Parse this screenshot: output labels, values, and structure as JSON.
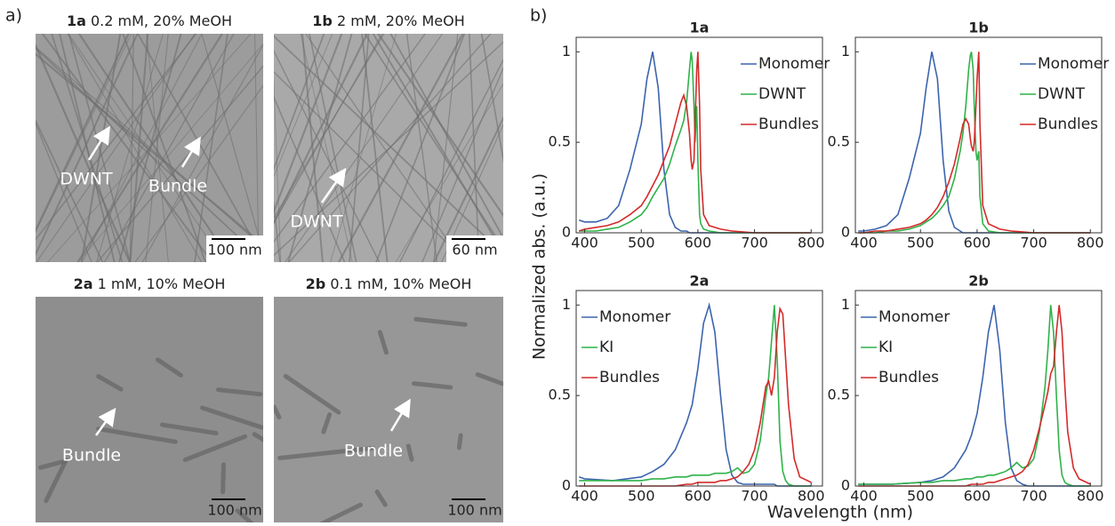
{
  "figure": {
    "label_a": "a)",
    "label_b": "b)",
    "ylabel": "Normalized abs. (a.u.)",
    "xlabel": "Wavelength (nm)"
  },
  "micrographs": [
    {
      "id": "1a",
      "caption": "0.2 mM, 20% MeOH",
      "annotations": [
        "DWNT",
        "Bundle"
      ],
      "scale_bar": "100 nm"
    },
    {
      "id": "1b",
      "caption": "2 mM, 20% MeOH",
      "annotations": [
        "DWNT"
      ],
      "scale_bar": "60 nm"
    },
    {
      "id": "2a",
      "caption": "1 mM, 10% MeOH",
      "annotations": [
        "Bundle"
      ],
      "scale_bar": "100 nm"
    },
    {
      "id": "2b",
      "caption": "0.1 mM, 10% MeOH",
      "annotations": [
        "Bundle"
      ],
      "scale_bar": "100 nm"
    }
  ],
  "chart_data": [
    {
      "type": "line",
      "title": "1a",
      "legend": "upper right",
      "xlim": [
        385,
        820
      ],
      "ylim": [
        0,
        1.08
      ],
      "xticks": [
        400,
        500,
        600,
        700,
        800
      ],
      "yticks": [
        0,
        0.5,
        1
      ],
      "x": [
        390,
        400,
        420,
        440,
        460,
        480,
        500,
        510,
        520,
        530,
        540,
        550,
        560,
        570,
        575,
        580,
        585,
        588,
        590,
        593,
        595,
        598,
        600,
        603,
        605,
        610,
        620,
        640,
        660,
        700,
        750,
        800
      ],
      "series": [
        {
          "name": "Monomer",
          "color": "#3c64ad",
          "values": [
            0.07,
            0.06,
            0.06,
            0.08,
            0.15,
            0.35,
            0.6,
            0.85,
            1.0,
            0.8,
            0.35,
            0.1,
            0.03,
            0.01,
            0.01,
            0.01,
            0,
            0,
            0,
            0,
            0,
            0,
            0,
            0,
            0,
            0,
            0,
            0,
            0,
            0,
            0,
            0
          ]
        },
        {
          "name": "DWNT",
          "color": "#2fb24a",
          "values": [
            0.01,
            0.01,
            0.01,
            0.02,
            0.03,
            0.06,
            0.1,
            0.14,
            0.2,
            0.25,
            0.3,
            0.38,
            0.48,
            0.57,
            0.62,
            0.72,
            0.9,
            1.0,
            0.95,
            0.7,
            0.5,
            0.7,
            0.4,
            0.1,
            0.05,
            0.02,
            0.01,
            0,
            0,
            0,
            0,
            0
          ]
        },
        {
          "name": "Bundles",
          "color": "#d42a2a",
          "values": [
            0.01,
            0.02,
            0.03,
            0.04,
            0.06,
            0.1,
            0.15,
            0.2,
            0.26,
            0.32,
            0.4,
            0.48,
            0.6,
            0.72,
            0.76,
            0.7,
            0.55,
            0.4,
            0.35,
            0.4,
            0.6,
            0.9,
            1.0,
            0.7,
            0.35,
            0.1,
            0.04,
            0.02,
            0.01,
            0,
            0,
            0
          ]
        }
      ]
    },
    {
      "type": "line",
      "title": "1b",
      "legend": "upper right",
      "xlim": [
        385,
        820
      ],
      "ylim": [
        0,
        1.08
      ],
      "xticks": [
        400,
        500,
        600,
        700,
        800
      ],
      "yticks": [
        0,
        0.5,
        1
      ],
      "x": [
        390,
        400,
        420,
        440,
        460,
        480,
        500,
        510,
        520,
        530,
        540,
        550,
        560,
        570,
        575,
        580,
        585,
        588,
        590,
        593,
        595,
        598,
        600,
        603,
        605,
        610,
        620,
        640,
        660,
        700,
        750,
        800
      ],
      "series": [
        {
          "name": "Monomer",
          "color": "#3c64ad",
          "values": [
            0.01,
            0.01,
            0.02,
            0.04,
            0.1,
            0.3,
            0.55,
            0.8,
            1.0,
            0.85,
            0.4,
            0.12,
            0.03,
            0.01,
            0,
            0,
            0,
            0,
            0,
            0,
            0,
            0,
            0,
            0,
            0,
            0,
            0,
            0,
            0,
            0,
            0,
            0
          ]
        },
        {
          "name": "DWNT",
          "color": "#2fb24a",
          "values": [
            0,
            0,
            0,
            0.01,
            0.01,
            0.02,
            0.04,
            0.06,
            0.08,
            0.11,
            0.15,
            0.2,
            0.3,
            0.45,
            0.55,
            0.7,
            0.9,
            0.98,
            1.0,
            0.9,
            0.7,
            0.45,
            0.4,
            0.45,
            0.2,
            0.05,
            0.01,
            0,
            0,
            0,
            0,
            0
          ]
        },
        {
          "name": "Bundles",
          "color": "#d42a2a",
          "values": [
            0,
            0,
            0.01,
            0.01,
            0.02,
            0.03,
            0.05,
            0.07,
            0.1,
            0.14,
            0.2,
            0.28,
            0.38,
            0.52,
            0.6,
            0.63,
            0.6,
            0.52,
            0.48,
            0.45,
            0.5,
            0.7,
            0.85,
            1.0,
            0.6,
            0.15,
            0.05,
            0.02,
            0.01,
            0,
            0,
            0
          ]
        }
      ]
    },
    {
      "type": "line",
      "title": "2a",
      "legend": "upper left",
      "xlim": [
        385,
        820
      ],
      "ylim": [
        0,
        1.08
      ],
      "xticks": [
        400,
        500,
        600,
        700,
        800
      ],
      "yticks": [
        0,
        0.5,
        1
      ],
      "x": [
        390,
        400,
        450,
        500,
        520,
        540,
        560,
        580,
        590,
        600,
        610,
        620,
        630,
        640,
        650,
        660,
        670,
        680,
        690,
        700,
        710,
        720,
        725,
        730,
        735,
        740,
        745,
        750,
        755,
        760,
        770,
        780,
        800
      ],
      "series": [
        {
          "name": "Monomer",
          "color": "#3c64ad",
          "values": [
            0.05,
            0.04,
            0.03,
            0.05,
            0.08,
            0.12,
            0.2,
            0.35,
            0.45,
            0.65,
            0.9,
            1.0,
            0.85,
            0.5,
            0.2,
            0.06,
            0.02,
            0.01,
            0.01,
            0.01,
            0.01,
            0.01,
            0.01,
            0.01,
            0.01,
            0,
            0,
            0,
            0,
            0,
            0,
            0,
            0
          ]
        },
        {
          "name": "KI",
          "color": "#2fb24a",
          "values": [
            0.03,
            0.03,
            0.03,
            0.03,
            0.04,
            0.04,
            0.05,
            0.05,
            0.06,
            0.06,
            0.06,
            0.06,
            0.07,
            0.07,
            0.07,
            0.08,
            0.1,
            0.07,
            0.08,
            0.12,
            0.25,
            0.5,
            0.6,
            0.8,
            1.0,
            0.7,
            0.25,
            0.08,
            0.03,
            0.01,
            0,
            0,
            0
          ]
        },
        {
          "name": "Bundles",
          "color": "#d42a2a",
          "values": [
            0,
            0,
            0,
            0,
            0,
            0,
            0,
            0.01,
            0.01,
            0.02,
            0.02,
            0.02,
            0.02,
            0.03,
            0.03,
            0.04,
            0.05,
            0.08,
            0.12,
            0.2,
            0.35,
            0.55,
            0.58,
            0.5,
            0.6,
            0.85,
            0.98,
            0.95,
            0.7,
            0.45,
            0.15,
            0.05,
            0.02
          ]
        }
      ]
    },
    {
      "type": "line",
      "title": "2b",
      "legend": "upper left",
      "xlim": [
        385,
        820
      ],
      "ylim": [
        0,
        1.08
      ],
      "xticks": [
        400,
        500,
        600,
        700,
        800
      ],
      "yticks": [
        0,
        0.5,
        1
      ],
      "x": [
        390,
        400,
        450,
        500,
        520,
        540,
        560,
        580,
        590,
        600,
        610,
        620,
        630,
        640,
        650,
        660,
        670,
        680,
        690,
        700,
        710,
        720,
        725,
        730,
        735,
        740,
        745,
        750,
        755,
        760,
        770,
        780,
        800
      ],
      "series": [
        {
          "name": "Monomer",
          "color": "#3c64ad",
          "values": [
            0.01,
            0.01,
            0.01,
            0.02,
            0.03,
            0.05,
            0.1,
            0.2,
            0.28,
            0.4,
            0.6,
            0.85,
            1.0,
            0.75,
            0.35,
            0.1,
            0.03,
            0.01,
            0,
            0,
            0,
            0,
            0,
            0,
            0,
            0,
            0,
            0,
            0,
            0,
            0,
            0,
            0
          ]
        },
        {
          "name": "KI",
          "color": "#2fb24a",
          "values": [
            0.01,
            0.01,
            0.01,
            0.02,
            0.02,
            0.03,
            0.03,
            0.04,
            0.04,
            0.05,
            0.05,
            0.06,
            0.06,
            0.07,
            0.08,
            0.1,
            0.13,
            0.1,
            0.11,
            0.15,
            0.3,
            0.55,
            0.75,
            1.0,
            0.85,
            0.5,
            0.2,
            0.06,
            0.02,
            0.01,
            0,
            0,
            0
          ]
        },
        {
          "name": "Bundles",
          "color": "#d42a2a",
          "values": [
            0,
            0,
            0,
            0,
            0,
            0,
            0,
            0,
            0.01,
            0.01,
            0.01,
            0.02,
            0.02,
            0.03,
            0.04,
            0.05,
            0.06,
            0.08,
            0.12,
            0.2,
            0.32,
            0.45,
            0.52,
            0.62,
            0.66,
            0.85,
            1.0,
            0.85,
            0.55,
            0.3,
            0.1,
            0.04,
            0.01
          ]
        }
      ]
    }
  ]
}
